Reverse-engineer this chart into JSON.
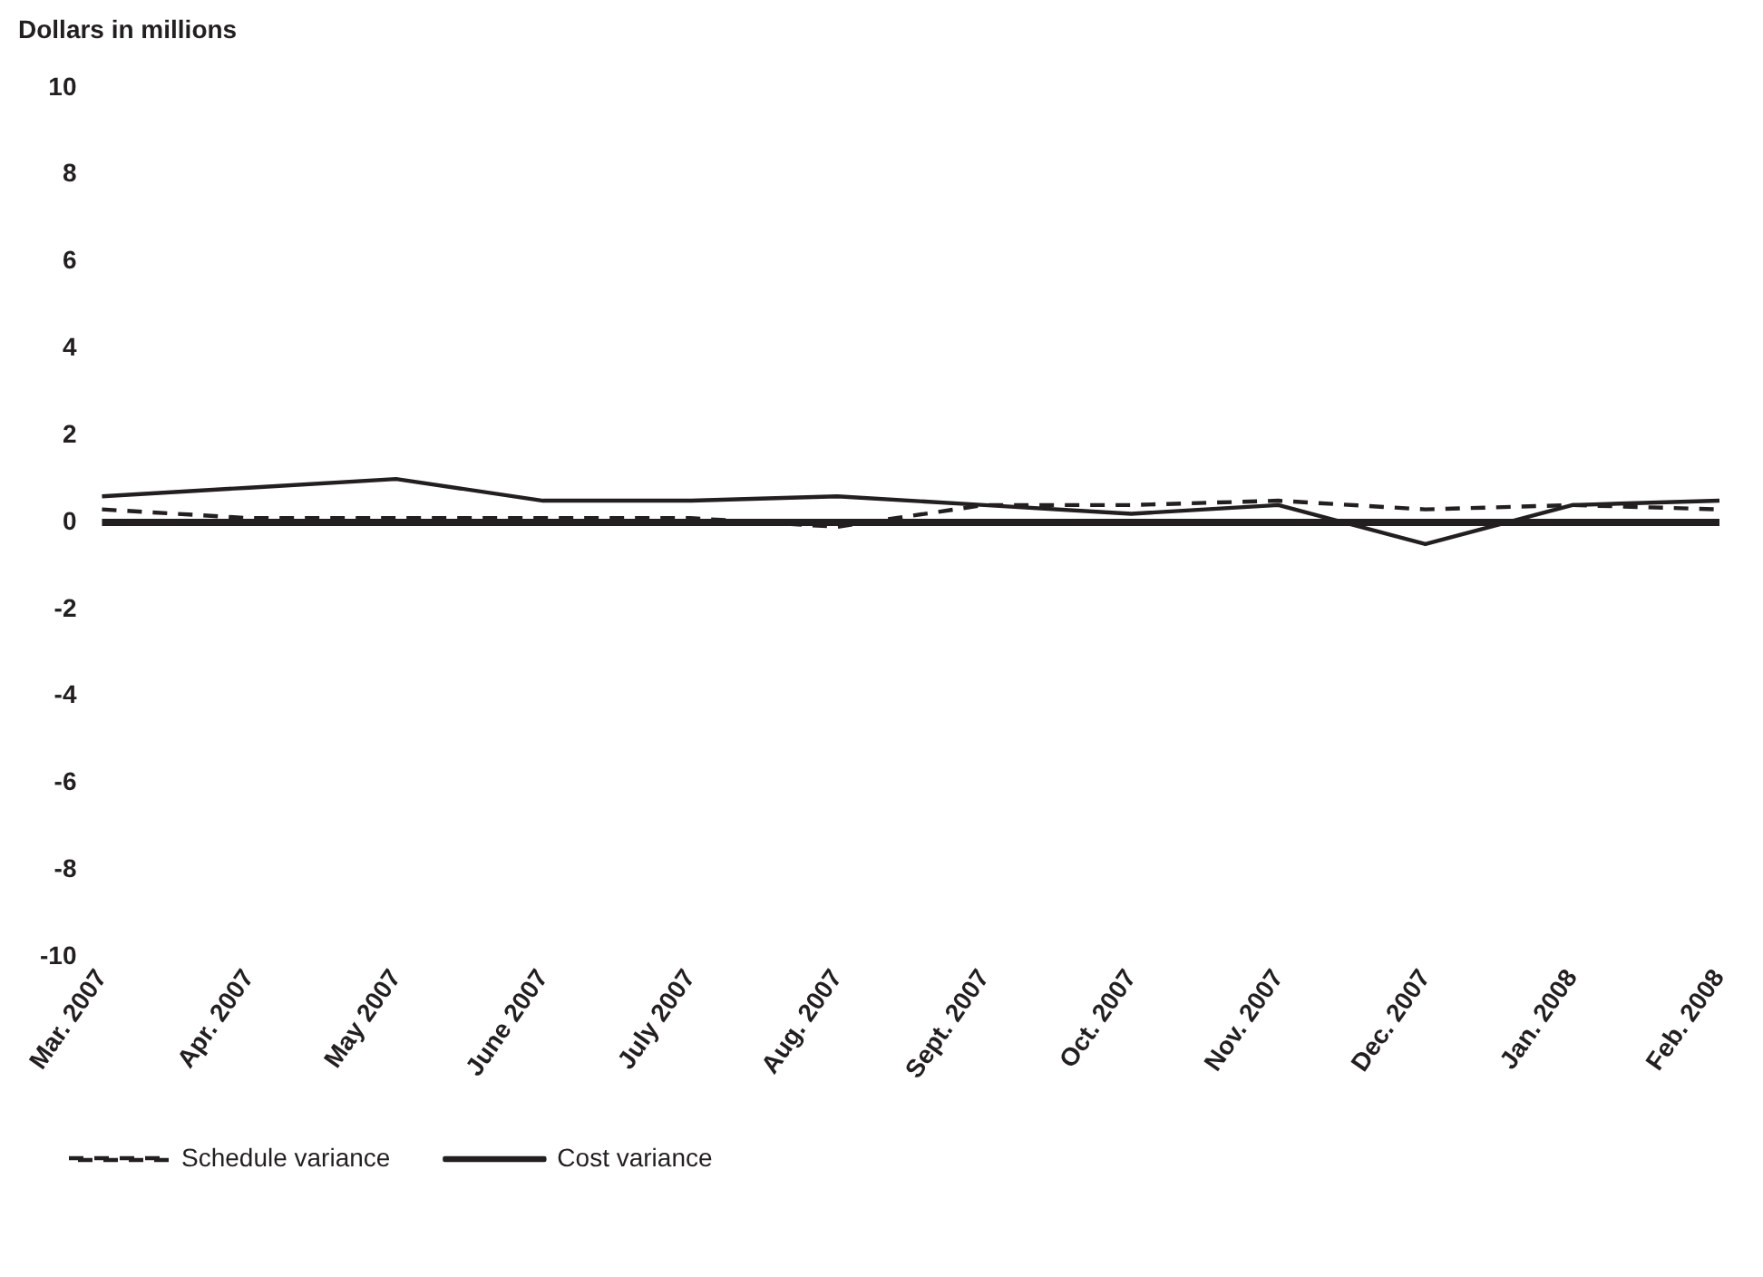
{
  "chart_data": {
    "type": "line",
    "ylabel": "Dollars in millions",
    "categories": [
      "Mar. 2007",
      "Apr. 2007",
      "May 2007",
      "June 2007",
      "July 2007",
      "Aug. 2007",
      "Sept. 2007",
      "Oct. 2007",
      "Nov. 2007",
      "Dec. 2007",
      "Jan. 2008",
      "Feb. 2008"
    ],
    "series": [
      {
        "name": "Schedule variance",
        "color": "#231f20",
        "line_style": "dashed",
        "values": [
          0.3,
          0.1,
          0.1,
          0.1,
          0.1,
          -0.1,
          0.4,
          0.4,
          0.5,
          0.3,
          0.4,
          0.3
        ]
      },
      {
        "name": "Cost variance",
        "color": "#231f20",
        "line_style": "solid",
        "values": [
          0.6,
          0.8,
          1.0,
          0.5,
          0.5,
          0.6,
          0.4,
          0.2,
          0.4,
          -0.5,
          0.4,
          0.5
        ]
      }
    ],
    "ylim": [
      -10,
      10
    ],
    "yticks": [
      -10,
      -8,
      -6,
      -4,
      -2,
      0,
      2,
      4,
      6,
      8,
      10
    ],
    "ref_lines": [
      {
        "axis": "y",
        "value": 0,
        "color": "#231f20"
      }
    ],
    "grid": false,
    "legend": "bottom left",
    "marker": "none"
  }
}
